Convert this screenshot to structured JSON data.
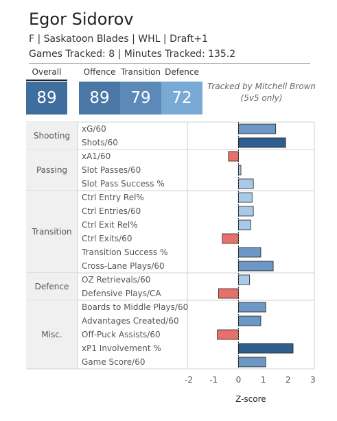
{
  "player": {
    "name": "Egor Sidorov",
    "info": "F | Saskatoon Blades | WHL | Draft+1",
    "tracking": "Games Tracked: 8 | Minutes Tracked: 135.2"
  },
  "scores": {
    "overall_label": "Overall",
    "overall_value": "89",
    "categories": [
      {
        "label": "Offence",
        "value": "89",
        "color": "#4a77a6"
      },
      {
        "label": "Transition",
        "value": "79",
        "color": "#5b8ab9"
      },
      {
        "label": "Defence",
        "value": "72",
        "color": "#79a9d5"
      }
    ],
    "overall_color": "#3e6e9d"
  },
  "tracked_by": "Tracked by Mitchell Brown (5v5 only)",
  "chart_data": {
    "type": "bar",
    "orientation": "horizontal",
    "xlabel": "Z-score",
    "xlim": [
      -2,
      3
    ],
    "xticks": [
      "-2",
      "-1",
      "0",
      "1",
      "2",
      "3"
    ],
    "zero_line": "dashed",
    "groups": [
      {
        "name": "Shooting",
        "metrics": [
          {
            "label": "xG/60",
            "value": 1.5
          },
          {
            "label": "Shots/60",
            "value": 1.9
          }
        ]
      },
      {
        "name": "Passing",
        "metrics": [
          {
            "label": "xA1/60",
            "value": -0.4
          },
          {
            "label": "Slot Passes/60",
            "value": 0.1
          },
          {
            "label": "Slot Pass Success %",
            "value": 0.6
          }
        ]
      },
      {
        "name": "Transition",
        "metrics": [
          {
            "label": "Ctrl Entry Rel%",
            "value": 0.55
          },
          {
            "label": "Ctrl Entries/60",
            "value": 0.6
          },
          {
            "label": "Ctrl Exit Rel%",
            "value": 0.5
          },
          {
            "label": "Ctrl Exits/60",
            "value": -0.65
          },
          {
            "label": "Transition Success %",
            "value": 0.9
          },
          {
            "label": "Cross-Lane Plays/60",
            "value": 1.4
          }
        ]
      },
      {
        "name": "Defence",
        "metrics": [
          {
            "label": "OZ Retrievals/60",
            "value": 0.45
          },
          {
            "label": "Defensive Plays/CA",
            "value": -0.8
          }
        ]
      },
      {
        "name": "Misc.",
        "metrics": [
          {
            "label": "Boards to Middle Plays/60",
            "value": 1.1
          },
          {
            "label": "Advantages Created/60",
            "value": 0.9
          },
          {
            "label": "Off-Puck Assists/60",
            "value": -0.85
          },
          {
            "label": "xP1 Involvement %",
            "value": 2.2
          },
          {
            "label": "Game Score/60",
            "value": 1.1
          }
        ]
      }
    ],
    "colors": {
      "negative": "#e8706a",
      "low": "#a9c9e8",
      "mid": "#6d97c4",
      "high": "#2f5d8e",
      "group_bg": "#f0f0f0"
    }
  }
}
